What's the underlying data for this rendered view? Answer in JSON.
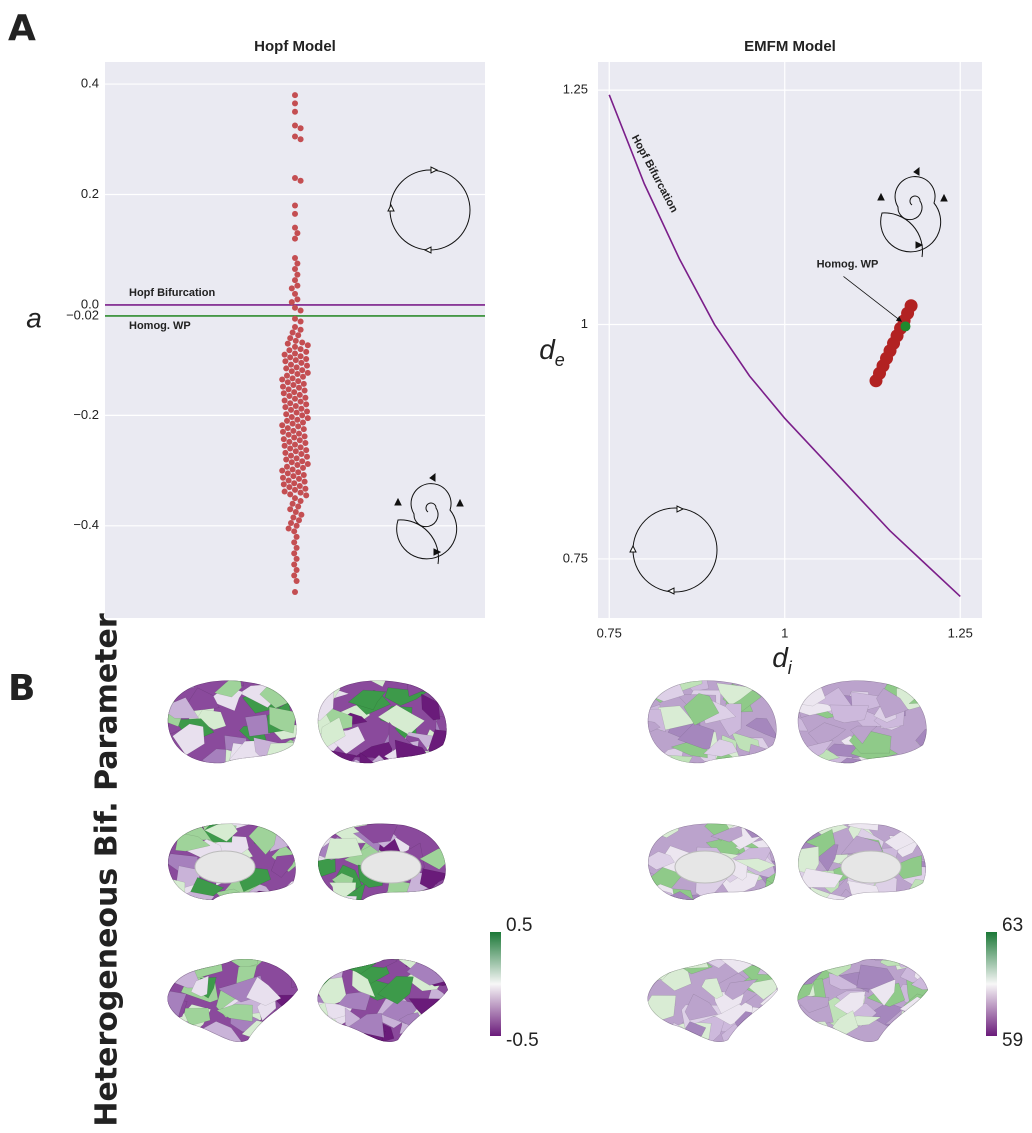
{
  "panel_labels": [
    "A",
    "B"
  ],
  "panel_b_label": "Heterogeneous Bif. Parameter",
  "chart_data": [
    {
      "type": "swarm",
      "title": "Hopf Model",
      "ylabel": "a",
      "ylim": [
        -0.567,
        0.44
      ],
      "yticks": [
        0.4,
        0.2,
        {
          "value": 0,
          "label": "0.0"
        },
        {
          "value": -0.02,
          "label": "−0.02"
        },
        {
          "value": -0.2,
          "label": "−0.2"
        },
        {
          "value": -0.4,
          "label": "−0.4"
        }
      ],
      "grid": true,
      "hlines": [
        {
          "value": 0,
          "color": "#7b1f8a",
          "label": "Hopf Bifurcation"
        },
        {
          "value": -0.02,
          "color": "#2e8b2e",
          "label": "Homog. WP"
        }
      ],
      "series": [
        {
          "color": "#c44e52",
          "values": [
            0.38,
            0.365,
            0.35,
            0.325,
            0.32,
            0.305,
            0.3,
            0.23,
            0.225,
            0.18,
            0.165,
            0.14,
            0.13,
            0.12,
            0.085,
            0.075,
            0.065,
            0.055,
            0.045,
            0.035,
            0.03,
            0.02,
            0.01,
            0.005,
            -0.005,
            -0.01,
            -0.025,
            -0.03,
            -0.04,
            -0.045,
            -0.05,
            -0.055,
            -0.06,
            -0.065,
            -0.068,
            -0.07,
            -0.073,
            -0.076,
            -0.08,
            -0.082,
            -0.085,
            -0.088,
            -0.09,
            -0.093,
            -0.095,
            -0.098,
            -0.1,
            -0.102,
            -0.105,
            -0.108,
            -0.11,
            -0.113,
            -0.115,
            -0.118,
            -0.12,
            -0.123,
            -0.125,
            -0.128,
            -0.13,
            -0.133,
            -0.135,
            -0.138,
            -0.14,
            -0.143,
            -0.145,
            -0.148,
            -0.15,
            -0.153,
            -0.155,
            -0.158,
            -0.16,
            -0.163,
            -0.165,
            -0.168,
            -0.17,
            -0.173,
            -0.175,
            -0.178,
            -0.18,
            -0.183,
            -0.185,
            -0.188,
            -0.19,
            -0.193,
            -0.195,
            -0.198,
            -0.2,
            -0.203,
            -0.205,
            -0.208,
            -0.21,
            -0.213,
            -0.215,
            -0.218,
            -0.22,
            -0.223,
            -0.225,
            -0.228,
            -0.23,
            -0.233,
            -0.235,
            -0.238,
            -0.24,
            -0.243,
            -0.245,
            -0.248,
            -0.25,
            -0.253,
            -0.255,
            -0.258,
            -0.26,
            -0.263,
            -0.265,
            -0.268,
            -0.27,
            -0.273,
            -0.275,
            -0.278,
            -0.28,
            -0.283,
            -0.285,
            -0.288,
            -0.29,
            -0.293,
            -0.295,
            -0.298,
            -0.3,
            -0.303,
            -0.305,
            -0.308,
            -0.31,
            -0.313,
            -0.315,
            -0.318,
            -0.32,
            -0.323,
            -0.325,
            -0.328,
            -0.33,
            -0.333,
            -0.335,
            -0.338,
            -0.34,
            -0.343,
            -0.345,
            -0.35,
            -0.355,
            -0.36,
            -0.365,
            -0.37,
            -0.375,
            -0.38,
            -0.385,
            -0.39,
            -0.395,
            -0.4,
            -0.405,
            -0.41,
            -0.42,
            -0.43,
            -0.44,
            -0.45,
            -0.46,
            -0.47,
            -0.48,
            -0.49,
            -0.5,
            -0.52
          ]
        }
      ]
    },
    {
      "type": "scatter",
      "title": "EMFM Model",
      "xlabel": {
        "main": "d",
        "sub": "i"
      },
      "ylabel": {
        "main": "d",
        "sub": "e"
      },
      "xlim": [
        0.734,
        1.281
      ],
      "ylim": [
        0.687,
        1.28
      ],
      "xticks": [
        0.75,
        1,
        1.25
      ],
      "yticks": [
        0.75,
        1,
        1.25
      ],
      "grid": true,
      "series": [
        {
          "type": "line",
          "color": "#7b1f8a",
          "label": "Hopf Bifurcation",
          "x": [
            0.75,
            0.8,
            0.85,
            0.9,
            0.95,
            1.0,
            1.05,
            1.1,
            1.15,
            1.2,
            1.25
          ],
          "values": [
            1.245,
            1.15,
            1.07,
            1.0,
            0.945,
            0.9,
            0.86,
            0.82,
            0.78,
            0.745,
            0.71
          ]
        },
        {
          "type": "scatter",
          "color": "#b22222",
          "x": [
            1.13,
            1.135,
            1.14,
            1.145,
            1.15,
            1.155,
            1.16,
            1.165,
            1.17,
            1.175,
            1.18
          ],
          "values": [
            0.94,
            0.948,
            0.956,
            0.964,
            0.972,
            0.98,
            0.988,
            0.996,
            1.004,
            1.012,
            1.02
          ]
        },
        {
          "type": "scatter",
          "color": "#1f8a2e",
          "label": "Homog. WP",
          "x": [
            1.172
          ],
          "values": [
            0.998
          ]
        }
      ]
    },
    {
      "type": "colorbar",
      "clim": [
        -0.5,
        0.5
      ],
      "ticks": [
        -0.5,
        0.5
      ],
      "colors": [
        "#6a1b7a",
        "#f7f7f7",
        "#1b7837"
      ]
    },
    {
      "type": "colorbar",
      "clim": [
        59,
        63
      ],
      "ticks": [
        59,
        63
      ],
      "colors": [
        "#6a1b7a",
        "#f7f7f7",
        "#1b7837"
      ]
    }
  ]
}
